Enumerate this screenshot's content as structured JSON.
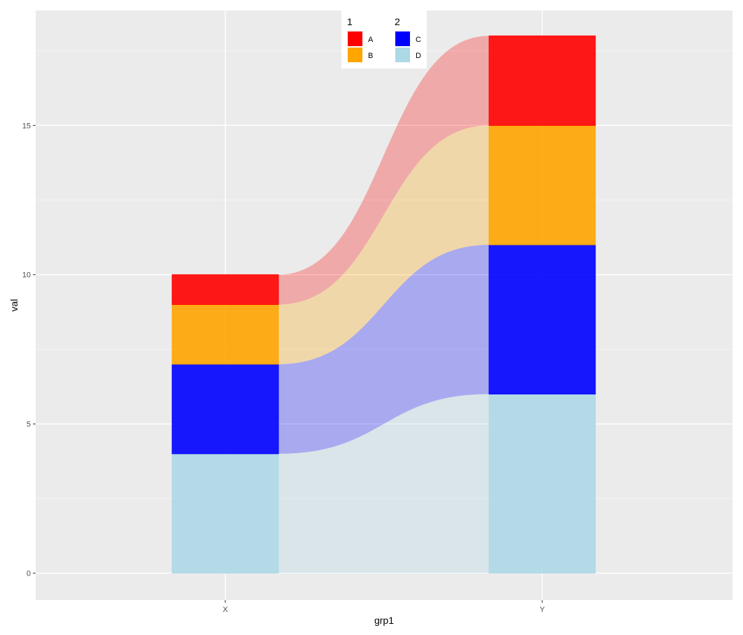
{
  "chart_data": {
    "type": "alluvial",
    "title": "",
    "xlabel": "grp1",
    "ylabel": "val",
    "categories": [
      "X",
      "Y"
    ],
    "ylim": [
      -0.9,
      18.85
    ],
    "yticks": [
      0,
      5,
      10,
      15
    ],
    "grid": true,
    "legend_position": "top-center",
    "legend": [
      {
        "title": "1",
        "items": [
          {
            "key": "A",
            "label": "A",
            "color": "#ff0000"
          },
          {
            "key": "B",
            "label": "B",
            "color": "#ffa500"
          }
        ]
      },
      {
        "title": "2",
        "items": [
          {
            "key": "C",
            "label": "C",
            "color": "#0000ff"
          },
          {
            "key": "D",
            "label": "D",
            "color": "#add8e6"
          }
        ]
      }
    ],
    "series": [
      {
        "key": "D",
        "color": "#add8e6",
        "values": [
          4,
          6
        ]
      },
      {
        "key": "C",
        "color": "#0000ff",
        "values": [
          3,
          5
        ]
      },
      {
        "key": "B",
        "color": "#ffa500",
        "values": [
          2,
          4
        ]
      },
      {
        "key": "A",
        "color": "#ff0000",
        "values": [
          1,
          3
        ]
      }
    ],
    "colors": {
      "panel": "#ebebeb",
      "grid_major": "#ffffff",
      "grid_minor": "#f5f5f5"
    }
  }
}
